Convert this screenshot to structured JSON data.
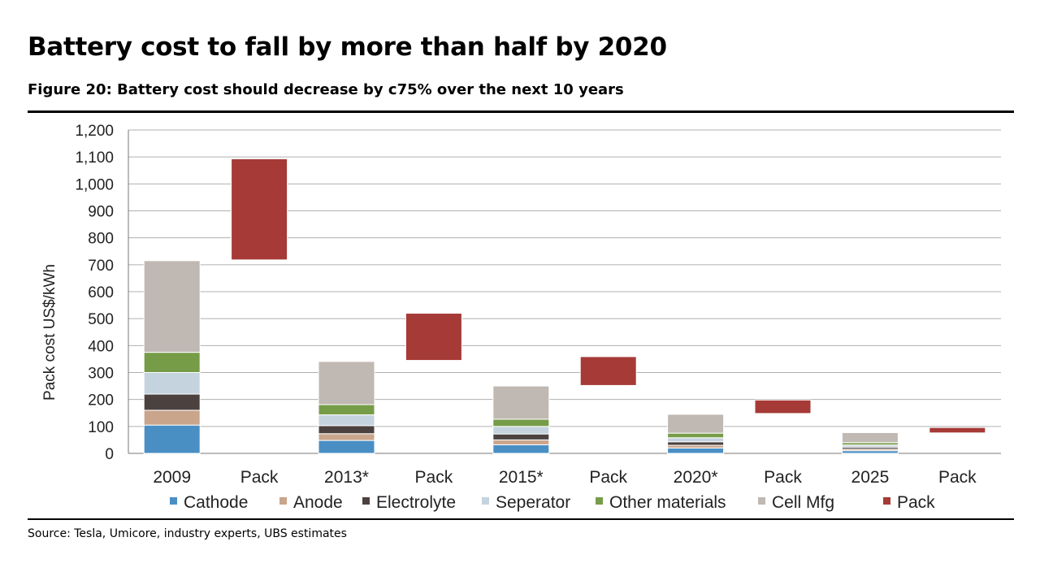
{
  "page": {
    "heading": "Battery cost to fall by more than half by 2020",
    "figure_title": "Figure 20: Battery cost should decrease by c75% over the next 10 years",
    "source": "Source: Tesla, Umicore, industry experts, UBS estimates"
  },
  "chart_data": {
    "type": "bar",
    "subtype": "stacked-waterfall",
    "ylabel": "Pack cost US$/kWh",
    "ylim": [
      0,
      1200
    ],
    "yticks": [
      0,
      100,
      200,
      300,
      400,
      500,
      600,
      700,
      800,
      900,
      1000,
      1100,
      1200
    ],
    "ytick_labels": [
      "0",
      "100",
      "200",
      "300",
      "400",
      "500",
      "600",
      "700",
      "800",
      "900",
      "1,000",
      "1,100",
      "1,200"
    ],
    "grid": true,
    "legend_position": "bottom",
    "categories": [
      "2009",
      "Pack",
      "2013*",
      "Pack",
      "2015*",
      "Pack",
      "2020*",
      "Pack",
      "2025",
      "Pack"
    ],
    "series": [
      {
        "name": "Cathode",
        "color": "#4a8fc4",
        "values": [
          105,
          0,
          48,
          0,
          32,
          0,
          20,
          0,
          10,
          0
        ]
      },
      {
        "name": "Anode",
        "color": "#c9a58c",
        "values": [
          55,
          0,
          25,
          0,
          18,
          0,
          10,
          0,
          6,
          0
        ]
      },
      {
        "name": "Electrolyte",
        "color": "#4b4240",
        "values": [
          60,
          0,
          30,
          0,
          22,
          0,
          13,
          0,
          7,
          0
        ]
      },
      {
        "name": "Seperator",
        "color": "#c5d3df",
        "values": [
          80,
          0,
          40,
          0,
          28,
          0,
          15,
          0,
          8,
          0
        ]
      },
      {
        "name": "Other materials",
        "color": "#779c48",
        "values": [
          75,
          0,
          38,
          0,
          27,
          0,
          17,
          0,
          9,
          0
        ]
      },
      {
        "name": "Cell Mfg",
        "color": "#c0b8b2",
        "values": [
          340,
          0,
          160,
          0,
          123,
          0,
          70,
          0,
          37,
          0
        ]
      },
      {
        "name": "Pack",
        "color": "#a63a36",
        "values": [
          0,
          375,
          0,
          175,
          0,
          107,
          0,
          50,
          0,
          20
        ]
      }
    ],
    "pack_base": [
      0,
      718,
      0,
      345,
      0,
      252,
      0,
      148,
      0,
      76
    ]
  }
}
